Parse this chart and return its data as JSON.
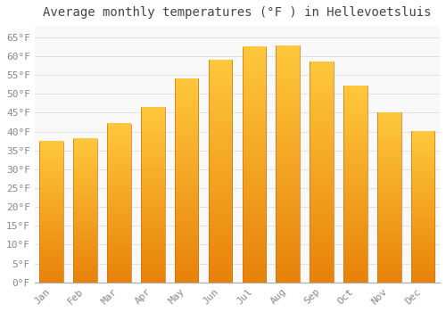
{
  "title": "Average monthly temperatures (°F ) in Hellevoetsluis",
  "months": [
    "Jan",
    "Feb",
    "Mar",
    "Apr",
    "May",
    "Jun",
    "Jul",
    "Aug",
    "Sep",
    "Oct",
    "Nov",
    "Dec"
  ],
  "values": [
    37.4,
    38.1,
    42.1,
    46.4,
    54.0,
    59.0,
    62.4,
    62.8,
    58.5,
    52.2,
    45.0,
    40.1
  ],
  "bar_color_top": "#FFB300",
  "bar_color_bottom": "#FF8C00",
  "background_color": "#ffffff",
  "plot_bg_color": "#f9f9f9",
  "grid_color": "#dddddd",
  "ylim": [
    0,
    68
  ],
  "yticks": [
    0,
    5,
    10,
    15,
    20,
    25,
    30,
    35,
    40,
    45,
    50,
    55,
    60,
    65
  ],
  "title_fontsize": 10,
  "tick_fontsize": 8,
  "title_font_color": "#444444",
  "tick_font_color": "#888888",
  "bar_width": 0.7
}
